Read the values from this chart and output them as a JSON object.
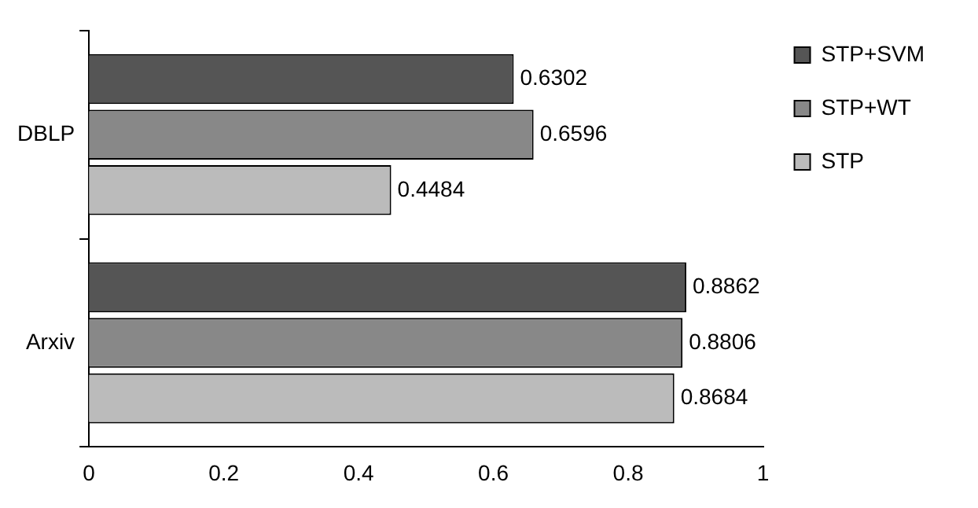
{
  "chart_data": {
    "type": "bar",
    "orientation": "horizontal",
    "categories": [
      "DBLP",
      "Arxiv"
    ],
    "series": [
      {
        "name": "STP+SVM",
        "color": "#555555",
        "values": [
          0.6302,
          0.8862
        ]
      },
      {
        "name": "STP+WT",
        "color": "#888888",
        "values": [
          0.6596,
          0.8806
        ]
      },
      {
        "name": "STP",
        "color": "#bbbbbb",
        "values": [
          0.4484,
          0.8684
        ]
      }
    ],
    "xlim": [
      0,
      1
    ],
    "xticks": [
      0,
      0.2,
      0.4,
      0.6,
      0.8,
      1
    ],
    "data_labels": true,
    "legend": "top right",
    "grid": false
  }
}
